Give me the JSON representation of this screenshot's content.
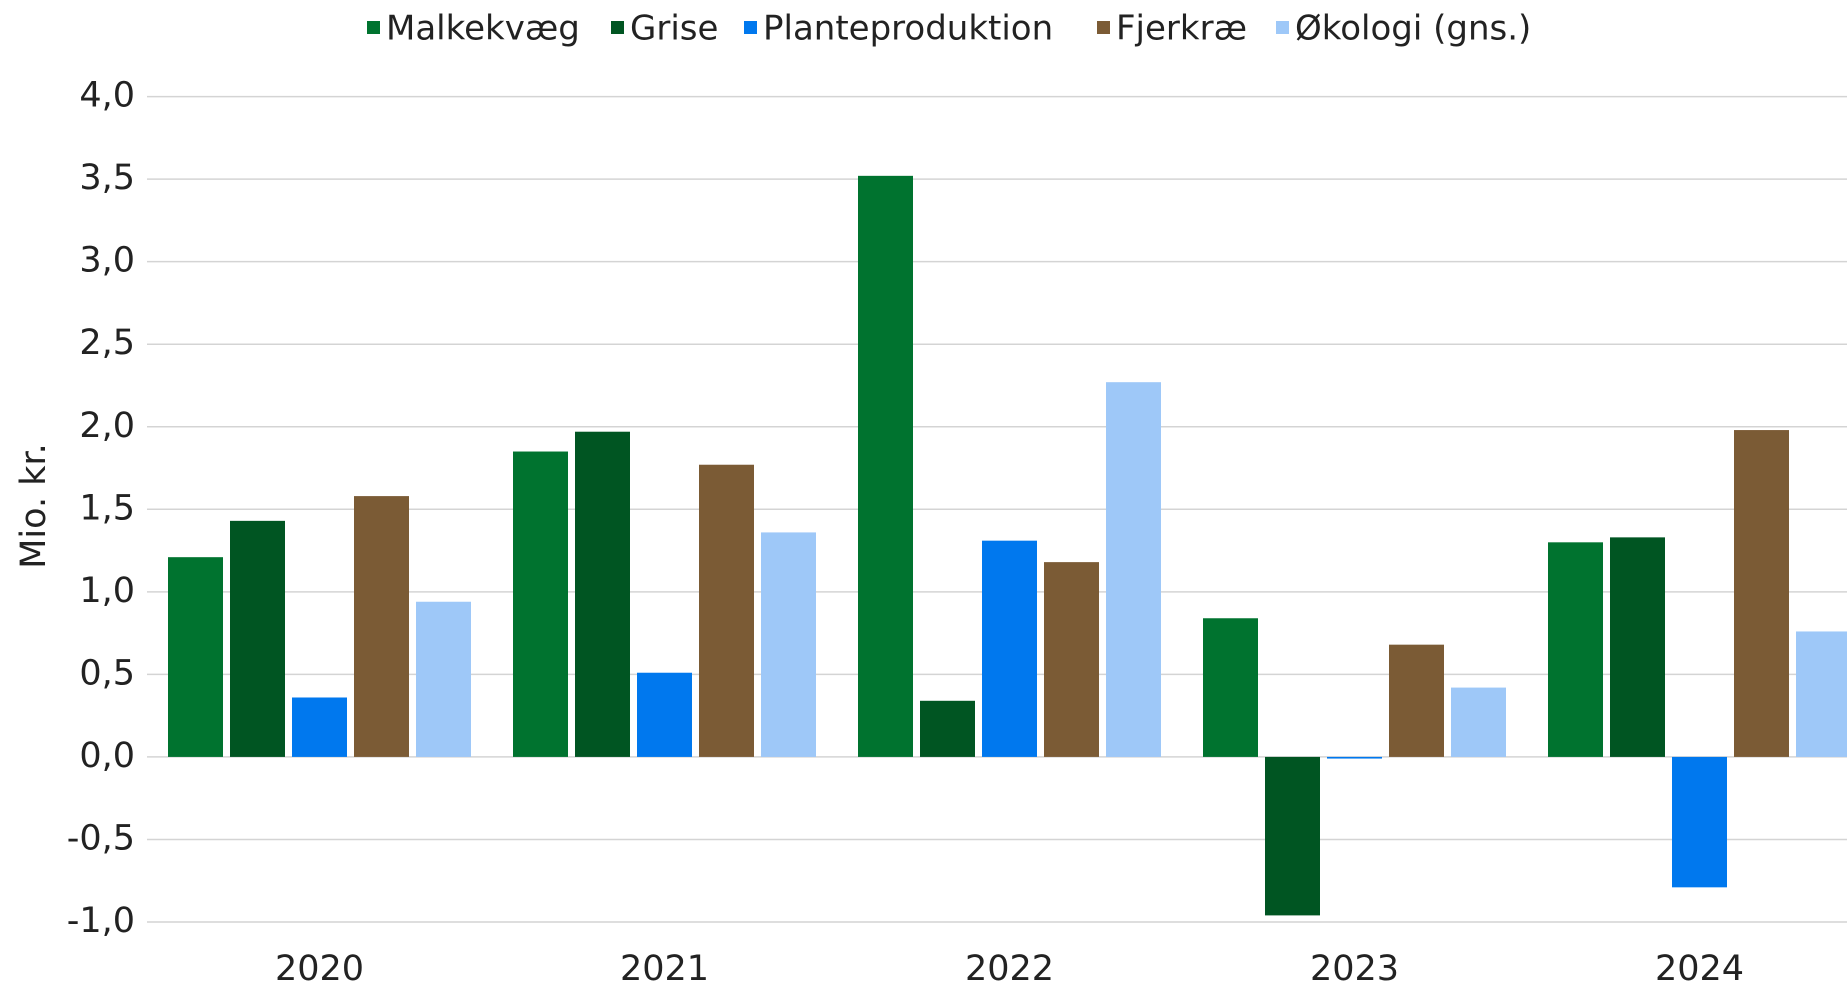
{
  "chart_data": {
    "type": "bar",
    "y_label": "Mio. kr.",
    "categories": [
      "2020",
      "2021",
      "2022",
      "2023",
      "2024"
    ],
    "series": [
      {
        "name": "Malkekvæg",
        "color": "#00732f",
        "values": [
          1.21,
          1.85,
          3.52,
          0.84,
          1.3
        ]
      },
      {
        "name": "Grise",
        "color": "#005522",
        "values": [
          1.43,
          1.97,
          0.34,
          -0.96,
          1.33
        ]
      },
      {
        "name": "Planteproduktion",
        "color": "#0078ee",
        "values": [
          0.36,
          0.51,
          1.31,
          -0.01,
          -0.79
        ]
      },
      {
        "name": "Fjerkræ",
        "color": "#7b5b35",
        "values": [
          1.58,
          1.77,
          1.18,
          0.68,
          1.98
        ]
      },
      {
        "name": "Økologi (gns.)",
        "color": "#9ec8f8",
        "values": [
          0.94,
          1.36,
          2.27,
          0.42,
          0.76
        ]
      }
    ],
    "ylim": [
      -1,
      4
    ],
    "yticks": [
      {
        "value": -1,
        "label": "-1,0"
      },
      {
        "value": -0.5,
        "label": "-0,5"
      },
      {
        "value": 0,
        "label": "0,0"
      },
      {
        "value": 0.5,
        "label": "0,5"
      },
      {
        "value": 1,
        "label": "1,0"
      },
      {
        "value": 1.5,
        "label": "1,5"
      },
      {
        "value": 2,
        "label": "2,0"
      },
      {
        "value": 2.5,
        "label": "2,5"
      },
      {
        "value": 3,
        "label": "3,0"
      },
      {
        "value": 3.5,
        "label": "3,5"
      },
      {
        "value": 4,
        "label": "4,0"
      }
    ],
    "grid": true,
    "legend": "top"
  }
}
